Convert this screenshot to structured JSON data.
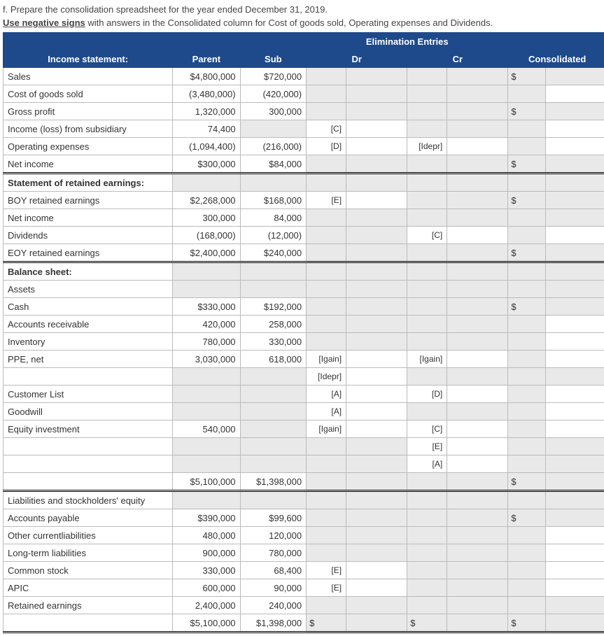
{
  "instructions": {
    "line1": "f. Prepare the consolidation spreadsheet for the year ended December 31, 2019.",
    "line2a": "Use negative signs",
    "line2b": " with answers in the Consolidated column for Cost of goods sold, Operating expenses and Dividends."
  },
  "headers": {
    "elim": "Elimination Entries",
    "income": "Income statement:",
    "parent": "Parent",
    "sub": "Sub",
    "dr": "Dr",
    "cr": "Cr",
    "cons": "Consolidated"
  },
  "rows": {
    "sales": {
      "label": "Sales",
      "parent": "$4,800,000",
      "sub": "$720,000",
      "cons": "$"
    },
    "cogs": {
      "label": "Cost of goods sold",
      "parent": "(3,480,000)",
      "sub": "(420,000)"
    },
    "gross": {
      "label": "Gross profit",
      "parent": "1,320,000",
      "sub": "300,000",
      "cons": "$"
    },
    "incsub": {
      "label": "Income (loss) from subsidiary",
      "parent": "74,400",
      "drtag": "[C]"
    },
    "opex": {
      "label": "Operating expenses",
      "parent": "(1,094,400)",
      "sub": "(216,000)",
      "drtag": "[D]",
      "crtag": "[Idepr]"
    },
    "netinc": {
      "label": "Net income",
      "parent": "$300,000",
      "sub": "$84,000",
      "cons": "$"
    },
    "sre": {
      "label": "Statement of retained earnings:"
    },
    "boyre": {
      "label": "BOY retained earnings",
      "parent": "$2,268,000",
      "sub": "$168,000",
      "drtag": "[E]",
      "cons": "$"
    },
    "netinc2": {
      "label": "Net income",
      "parent": "300,000",
      "sub": "84,000"
    },
    "div": {
      "label": "Dividends",
      "parent": "(168,000)",
      "sub": "(12,000)",
      "crtag": "[C]"
    },
    "eoyre": {
      "label": "EOY retained earnings",
      "parent": "$2,400,000",
      "sub": "$240,000",
      "cons": "$"
    },
    "bs": {
      "label": "Balance sheet:"
    },
    "assets": {
      "label": "Assets"
    },
    "cash": {
      "label": "Cash",
      "parent": "$330,000",
      "sub": "$192,000",
      "cons": "$"
    },
    "ar": {
      "label": "Accounts receivable",
      "parent": "420,000",
      "sub": "258,000"
    },
    "inv": {
      "label": "Inventory",
      "parent": "780,000",
      "sub": "330,000"
    },
    "ppe": {
      "label": "PPE, net",
      "parent": "3,030,000",
      "sub": "618,000",
      "drtag": "[Igain]",
      "crtag": "[Igain]"
    },
    "ppe2": {
      "label": "",
      "drtag": "[Idepr]"
    },
    "cust": {
      "label": "Customer List",
      "drtag": "[A]",
      "crtag": "[D]"
    },
    "gw": {
      "label": "Goodwill",
      "drtag": "[A]"
    },
    "eqinv": {
      "label": "Equity investment",
      "parent": "540,000",
      "drtag": "[Igain]",
      "crtag": "[C]"
    },
    "eqinv2": {
      "label": "",
      "crtag": "[E]"
    },
    "eqinv3": {
      "label": "",
      "crtag": "[A]"
    },
    "tot1": {
      "label": "",
      "parent": "$5,100,000",
      "sub": "$1,398,000",
      "cons": "$"
    },
    "liab": {
      "label": "Liabilities and stockholders' equity"
    },
    "ap": {
      "label": "Accounts payable",
      "parent": "$390,000",
      "sub": "$99,600",
      "cons": "$"
    },
    "ocl": {
      "label": "Other currentliabilities",
      "parent": "480,000",
      "sub": "120,000"
    },
    "ltl": {
      "label": "Long-term liabilities",
      "parent": "900,000",
      "sub": "780,000"
    },
    "cs": {
      "label": "Common stock",
      "parent": "330,000",
      "sub": "68,400",
      "drtag": "[E]"
    },
    "apic": {
      "label": "APIC",
      "parent": "600,000",
      "sub": "90,000",
      "drtag": "[E]"
    },
    "re": {
      "label": "Retained earnings",
      "parent": "2,400,000",
      "sub": "240,000"
    },
    "tot2": {
      "label": "",
      "parent": "$5,100,000",
      "sub": "$1,398,000",
      "drcons": "$",
      "crcons": "$",
      "cons": "$"
    }
  }
}
